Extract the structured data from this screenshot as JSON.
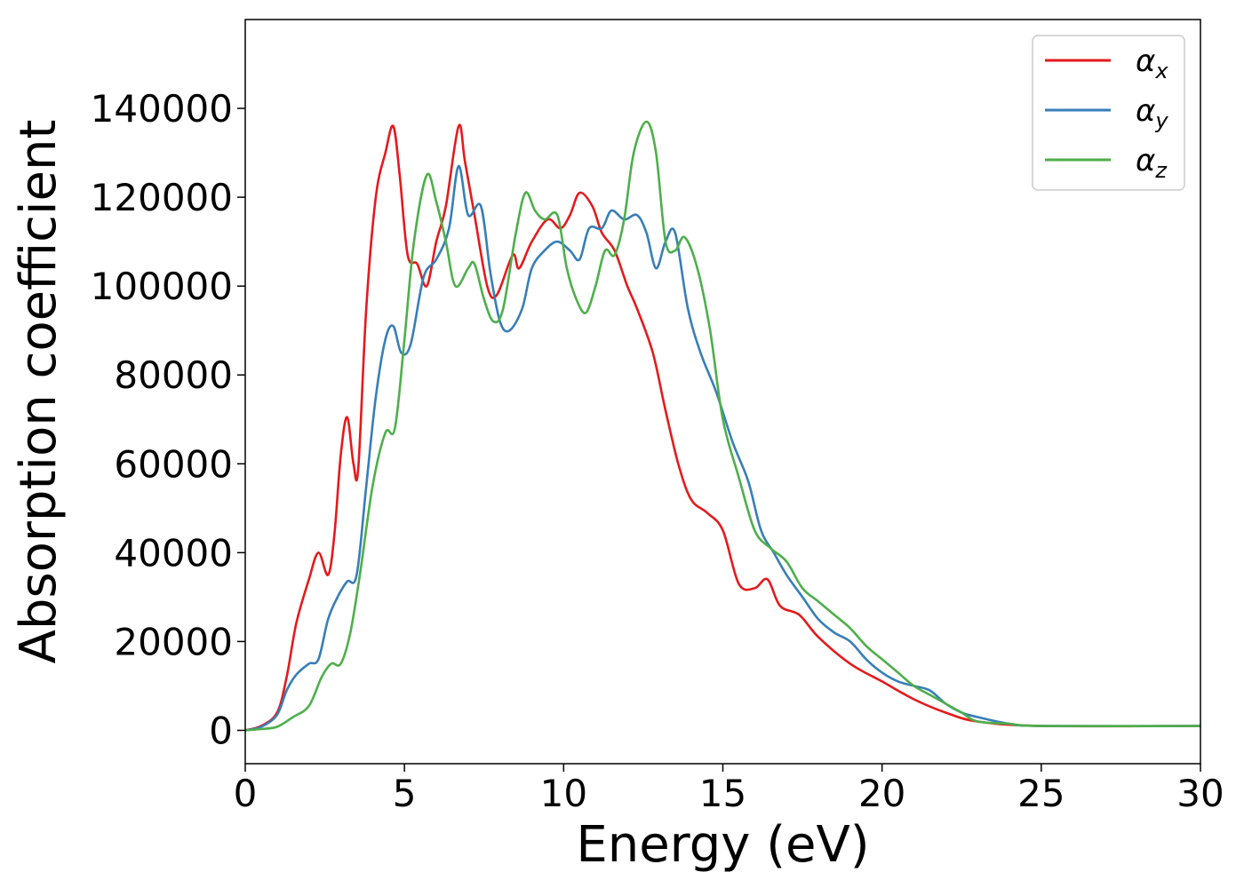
{
  "chart_data": {
    "type": "line",
    "xlabel": "Energy (eV)",
    "ylabel": "Absorption coefficient",
    "xlim": [
      0,
      30
    ],
    "ylim": [
      -7500,
      160000
    ],
    "xticks": [
      0,
      5,
      10,
      15,
      20,
      25,
      30
    ],
    "xtick_labels": [
      "0",
      "5",
      "10",
      "15",
      "20",
      "25",
      "30"
    ],
    "yticks": [
      0,
      20000,
      40000,
      60000,
      80000,
      100000,
      120000,
      140000
    ],
    "ytick_labels": [
      "0",
      "20000",
      "40000",
      "60000",
      "80000",
      "100000",
      "120000",
      "140000"
    ],
    "grid": false,
    "legend_position": "top-right",
    "series": [
      {
        "name": "α",
        "subscript": "x",
        "color": "#e41a1c",
        "x": [
          0,
          0.5,
          1.0,
          1.3,
          1.6,
          2.0,
          2.3,
          2.6,
          2.8,
          3.0,
          3.2,
          3.4,
          3.55,
          3.8,
          4.1,
          4.4,
          4.65,
          4.85,
          5.1,
          5.4,
          5.7,
          6.0,
          6.3,
          6.7,
          6.9,
          7.2,
          7.6,
          7.9,
          8.4,
          8.6,
          9.0,
          9.5,
          9.9,
          10.2,
          10.5,
          10.9,
          11.2,
          11.6,
          12.0,
          12.3,
          12.8,
          13.2,
          13.6,
          14.0,
          14.5,
          15.0,
          15.5,
          16.0,
          16.4,
          16.8,
          17.4,
          18.0,
          19.0,
          20.0,
          21.0,
          22.0,
          23.0,
          25.0,
          30.0
        ],
        "y": [
          0,
          1000,
          4000,
          12000,
          24000,
          34000,
          40000,
          35000,
          44000,
          62000,
          70500,
          60000,
          59000,
          95000,
          120000,
          130000,
          136000,
          125000,
          107000,
          105000,
          100000,
          110000,
          118000,
          136000,
          128000,
          116000,
          100000,
          98000,
          107000,
          104000,
          110000,
          115000,
          113000,
          116000,
          121000,
          118000,
          112000,
          108000,
          100000,
          95000,
          85000,
          72000,
          60000,
          52000,
          49000,
          45000,
          33000,
          32000,
          34000,
          28000,
          26000,
          21000,
          15000,
          11000,
          7000,
          4000,
          2000,
          1000,
          1000
        ]
      },
      {
        "name": "α",
        "subscript": "y",
        "color": "#377eb8",
        "x": [
          0,
          0.5,
          1.0,
          1.3,
          1.6,
          2.0,
          2.3,
          2.6,
          2.9,
          3.2,
          3.5,
          3.8,
          4.1,
          4.4,
          4.65,
          4.9,
          5.2,
          5.6,
          6.0,
          6.4,
          6.7,
          7.0,
          7.4,
          7.7,
          8.0,
          8.3,
          8.7,
          9.0,
          9.4,
          9.8,
          10.2,
          10.5,
          10.8,
          11.2,
          11.5,
          11.9,
          12.3,
          12.6,
          12.9,
          13.2,
          13.5,
          13.9,
          14.3,
          14.8,
          15.3,
          15.8,
          16.2,
          16.6,
          17.0,
          17.5,
          18.0,
          18.5,
          19.0,
          19.5,
          20.0,
          20.5,
          21.0,
          21.5,
          22.0,
          22.5,
          23.0,
          24.0,
          25.0,
          30.0
        ],
        "y": [
          0,
          800,
          3500,
          9000,
          12500,
          15000,
          16000,
          25000,
          30000,
          33500,
          35000,
          55000,
          75000,
          88000,
          91000,
          85000,
          87000,
          102000,
          106000,
          113000,
          127000,
          116000,
          118000,
          103000,
          92000,
          90000,
          95000,
          104000,
          108000,
          110000,
          108000,
          106000,
          113000,
          113000,
          117000,
          115000,
          116000,
          112000,
          104000,
          110000,
          112000,
          95000,
          85000,
          76000,
          65000,
          56000,
          45000,
          40000,
          35000,
          30000,
          25000,
          22000,
          20000,
          16000,
          13000,
          11000,
          10000,
          9000,
          6000,
          4000,
          3000,
          1500,
          1000,
          1000
        ]
      },
      {
        "name": "α",
        "subscript": "z",
        "color": "#4daf4a",
        "x": [
          0,
          0.5,
          1.0,
          1.5,
          2.0,
          2.4,
          2.7,
          3.0,
          3.3,
          3.6,
          4.0,
          4.4,
          4.7,
          5.0,
          5.3,
          5.7,
          6.0,
          6.3,
          6.6,
          7.0,
          7.2,
          7.5,
          7.8,
          8.1,
          8.5,
          8.8,
          9.1,
          9.4,
          9.8,
          10.1,
          10.4,
          10.7,
          11.0,
          11.3,
          11.6,
          11.9,
          12.2,
          12.6,
          12.9,
          13.2,
          13.5,
          13.8,
          14.2,
          14.6,
          15.0,
          15.5,
          16.0,
          16.5,
          17.0,
          17.5,
          18.0,
          18.5,
          19.0,
          19.5,
          20.0,
          20.5,
          21.0,
          21.5,
          22.0,
          22.5,
          23.0,
          24.0,
          25.0,
          30.0
        ],
        "y": [
          0,
          300,
          800,
          3000,
          5500,
          12000,
          15000,
          15000,
          22000,
          35000,
          55000,
          67000,
          68000,
          88000,
          110000,
          125000,
          119000,
          110000,
          100000,
          104000,
          105000,
          97000,
          92000,
          95000,
          112000,
          121000,
          117000,
          115000,
          116000,
          104000,
          97000,
          94000,
          100000,
          108000,
          107000,
          115000,
          130000,
          137000,
          130000,
          110000,
          108000,
          111000,
          104000,
          90000,
          70000,
          57000,
          45000,
          41000,
          38000,
          32000,
          29000,
          26000,
          23000,
          19000,
          16000,
          13000,
          10000,
          8000,
          6000,
          4000,
          2000,
          1500,
          1000,
          1000
        ]
      }
    ]
  }
}
